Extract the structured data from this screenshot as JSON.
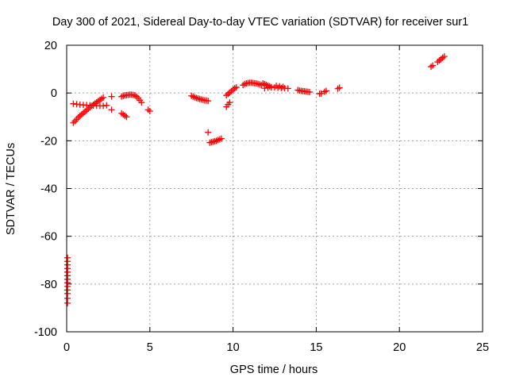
{
  "chart_data": {
    "type": "scatter",
    "title": "Day 300 of 2021, Sidereal Day-to-day VTEC variation (SDTVAR) for receiver sur1",
    "xlabel": "GPS time / hours",
    "ylabel": "SDTVAR / TECUs",
    "xlim": [
      0,
      25
    ],
    "ylim": [
      -100,
      20
    ],
    "xticks": [
      0,
      5,
      10,
      15,
      20,
      25
    ],
    "yticks": [
      20,
      0,
      -20,
      -40,
      -60,
      -80,
      -100
    ],
    "grid": true,
    "marker": "+",
    "color": "#ff0000",
    "series": [
      {
        "name": "SDTVAR",
        "points": [
          [
            0.05,
            -69
          ],
          [
            0.05,
            -70.5
          ],
          [
            0.05,
            -72
          ],
          [
            0.05,
            -73.5
          ],
          [
            0.05,
            -75
          ],
          [
            0.05,
            -76.5
          ],
          [
            0.05,
            -78
          ],
          [
            0.05,
            -79.5
          ],
          [
            0.05,
            -81
          ],
          [
            0.05,
            -82.5
          ],
          [
            0.05,
            -84
          ],
          [
            0.05,
            -86
          ],
          [
            0.05,
            -88
          ],
          [
            0.4,
            -12.5
          ],
          [
            0.5,
            -11.8
          ],
          [
            0.6,
            -11.0
          ],
          [
            0.7,
            -10.2
          ],
          [
            0.8,
            -9.6
          ],
          [
            0.9,
            -9.0
          ],
          [
            1.0,
            -8.4
          ],
          [
            1.1,
            -7.8
          ],
          [
            1.2,
            -7.2
          ],
          [
            1.3,
            -6.6
          ],
          [
            1.4,
            -6.0
          ],
          [
            1.5,
            -5.4
          ],
          [
            1.6,
            -4.9
          ],
          [
            1.7,
            -4.4
          ],
          [
            1.8,
            -3.9
          ],
          [
            1.9,
            -3.4
          ],
          [
            2.0,
            -2.9
          ],
          [
            2.1,
            -2.4
          ],
          [
            2.2,
            -1.9
          ],
          [
            0.4,
            -4.5
          ],
          [
            0.6,
            -4.7
          ],
          [
            0.8,
            -4.9
          ],
          [
            1.0,
            -5.0
          ],
          [
            1.2,
            -5.1
          ],
          [
            1.4,
            -5.2
          ],
          [
            1.6,
            -5.3
          ],
          [
            1.8,
            -5.3
          ],
          [
            2.0,
            -5.4
          ],
          [
            2.2,
            -5.4
          ],
          [
            2.4,
            -5.2
          ],
          [
            2.7,
            -1.5
          ],
          [
            2.7,
            -7.0
          ],
          [
            3.3,
            -8.5
          ],
          [
            3.4,
            -9.0
          ],
          [
            3.5,
            -9.5
          ],
          [
            3.6,
            -10.0
          ],
          [
            3.3,
            -1.5
          ],
          [
            3.4,
            -1.2
          ],
          [
            3.5,
            -1.0
          ],
          [
            3.6,
            -0.9
          ],
          [
            3.7,
            -0.8
          ],
          [
            3.8,
            -0.7
          ],
          [
            3.9,
            -0.7
          ],
          [
            4.0,
            -0.8
          ],
          [
            4.1,
            -1.0
          ],
          [
            4.2,
            -1.5
          ],
          [
            4.3,
            -2.2
          ],
          [
            4.4,
            -3.0
          ],
          [
            4.5,
            -4.0
          ],
          [
            4.9,
            -7.0
          ],
          [
            5.0,
            -7.6
          ],
          [
            7.5,
            -1.2
          ],
          [
            7.6,
            -1.5
          ],
          [
            7.7,
            -1.8
          ],
          [
            7.8,
            -2.1
          ],
          [
            7.9,
            -2.3
          ],
          [
            8.0,
            -2.5
          ],
          [
            8.1,
            -2.7
          ],
          [
            8.2,
            -2.9
          ],
          [
            8.3,
            -3.1
          ],
          [
            8.4,
            -3.2
          ],
          [
            8.5,
            -3.3
          ],
          [
            8.5,
            -16.5
          ],
          [
            8.6,
            -20.8
          ],
          [
            8.7,
            -20.6
          ],
          [
            8.8,
            -20.4
          ],
          [
            8.9,
            -20.2
          ],
          [
            9.0,
            -20.0
          ],
          [
            9.1,
            -19.7
          ],
          [
            9.2,
            -19.4
          ],
          [
            9.3,
            -19.1
          ],
          [
            9.6,
            -5.8
          ],
          [
            9.7,
            -4.8
          ],
          [
            9.8,
            -4.0
          ],
          [
            9.6,
            -1.0
          ],
          [
            9.7,
            -0.4
          ],
          [
            9.8,
            0.2
          ],
          [
            9.9,
            0.8
          ],
          [
            10.0,
            1.4
          ],
          [
            10.1,
            2.0
          ],
          [
            10.2,
            2.4
          ],
          [
            10.6,
            3.3
          ],
          [
            10.7,
            3.8
          ],
          [
            10.8,
            4.0
          ],
          [
            10.9,
            4.2
          ],
          [
            11.0,
            4.3
          ],
          [
            11.1,
            4.3
          ],
          [
            11.2,
            4.2
          ],
          [
            11.3,
            4.1
          ],
          [
            11.4,
            4.0
          ],
          [
            11.5,
            3.8
          ],
          [
            11.6,
            3.6
          ],
          [
            11.7,
            3.3
          ],
          [
            11.8,
            4.0
          ],
          [
            11.9,
            3.7
          ],
          [
            12.0,
            3.4
          ],
          [
            12.1,
            3.1
          ],
          [
            12.2,
            2.8
          ],
          [
            12.3,
            2.5
          ],
          [
            11.9,
            2.0
          ],
          [
            12.1,
            2.2
          ],
          [
            12.3,
            2.4
          ],
          [
            12.5,
            2.3
          ],
          [
            12.7,
            2.2
          ],
          [
            12.9,
            2.1
          ],
          [
            13.1,
            2.0
          ],
          [
            13.3,
            1.9
          ],
          [
            12.6,
            3.0
          ],
          [
            12.8,
            2.8
          ],
          [
            13.0,
            2.6
          ],
          [
            13.9,
            1.2
          ],
          [
            14.0,
            1.0
          ],
          [
            14.1,
            0.9
          ],
          [
            14.2,
            0.8
          ],
          [
            14.3,
            0.7
          ],
          [
            14.4,
            0.6
          ],
          [
            14.5,
            0.5
          ],
          [
            14.6,
            0.4
          ],
          [
            15.2,
            -0.3
          ],
          [
            15.3,
            -0.2
          ],
          [
            15.5,
            0.5
          ],
          [
            15.6,
            0.9
          ],
          [
            16.3,
            1.8
          ],
          [
            16.4,
            2.2
          ],
          [
            21.9,
            11.0
          ],
          [
            22.0,
            11.5
          ],
          [
            22.3,
            13.0
          ],
          [
            22.4,
            13.6
          ],
          [
            22.5,
            14.2
          ],
          [
            22.6,
            14.8
          ],
          [
            22.7,
            15.3
          ]
        ]
      }
    ]
  }
}
